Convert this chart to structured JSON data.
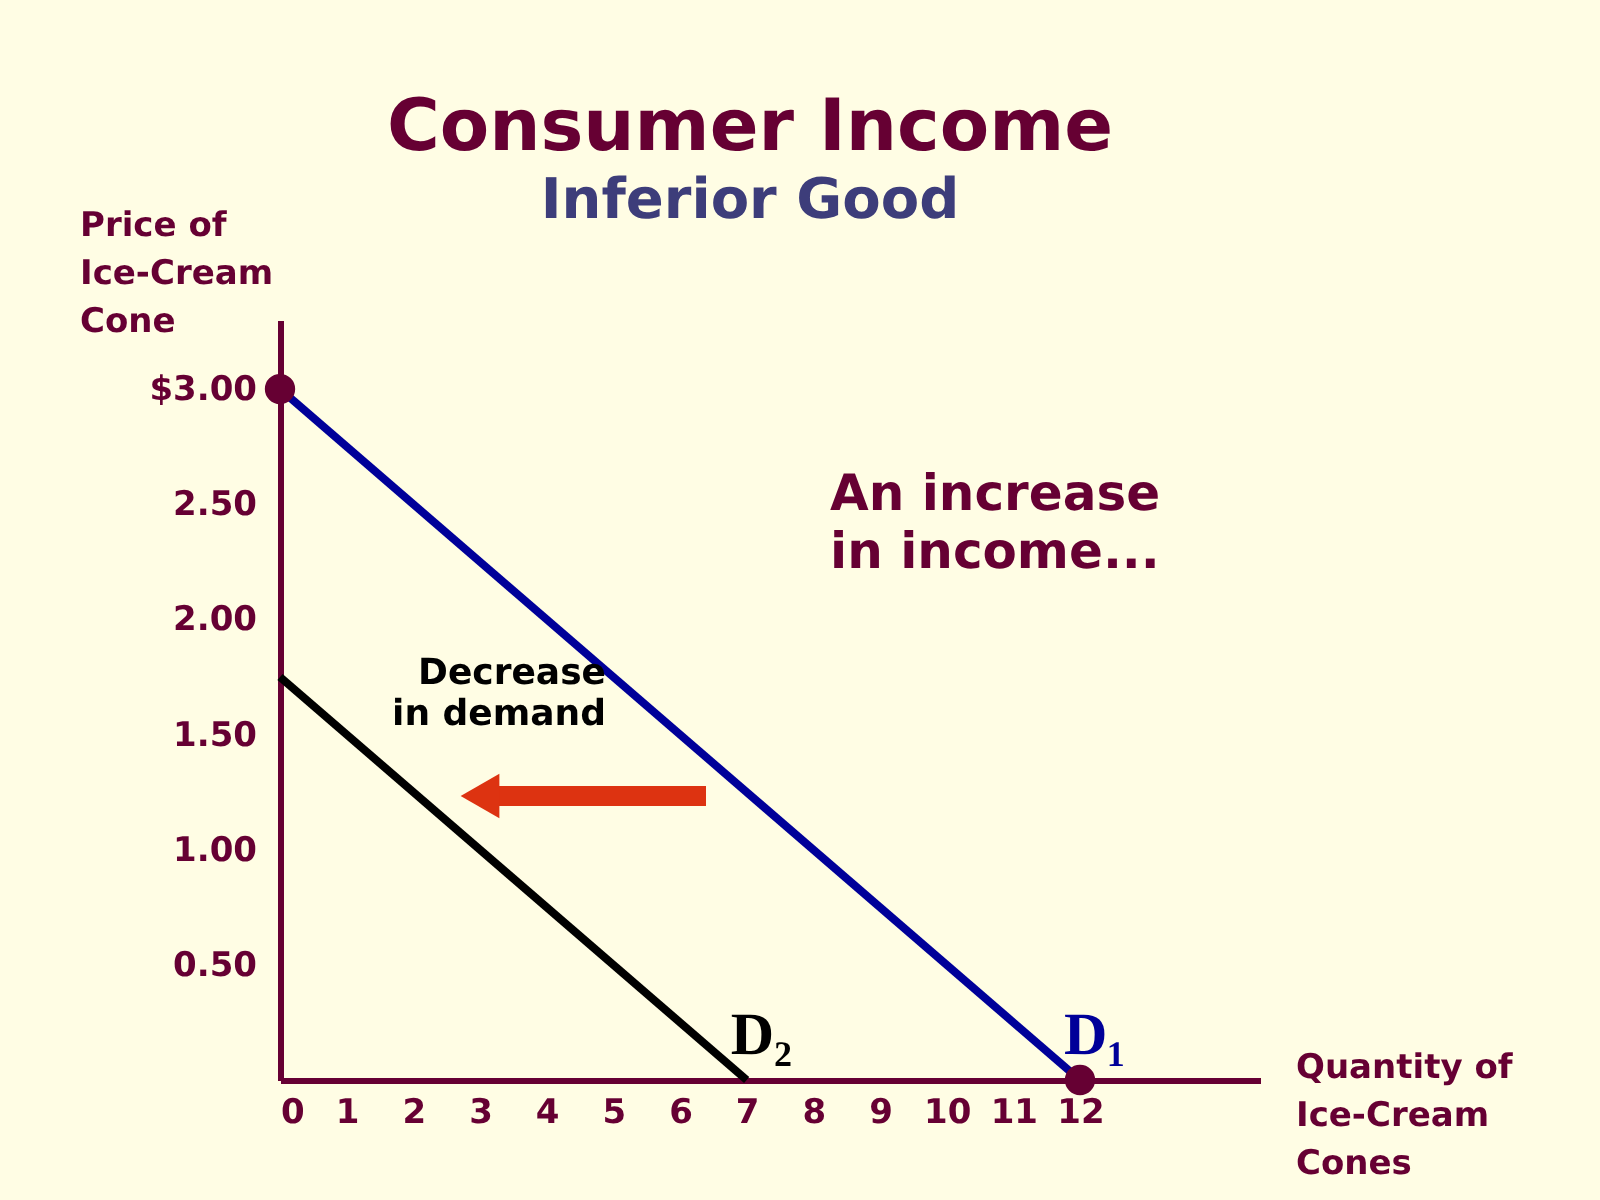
{
  "chart_data": {
    "type": "line",
    "title": "Consumer Income",
    "subtitle": "Inferior Good",
    "xlabel": "Quantity of Ice-Cream Cones",
    "ylabel": "Price of Ice-Cream Cone",
    "series": [
      {
        "name": "D₁",
        "color": "#000099",
        "x": [
          0,
          12
        ],
        "values": [
          3.0,
          0
        ]
      },
      {
        "name": "D₂",
        "color": "#000000",
        "x": [
          0,
          7
        ],
        "values": [
          1.75,
          0
        ]
      },
      {
        "type": "scatter",
        "marker": "circle",
        "color": "#660033",
        "x": [
          0,
          12
        ],
        "values": [
          3.0,
          0
        ]
      }
    ],
    "annotations": [
      "An increase in income...",
      "Decrease in demand"
    ],
    "xlim": [
      0,
      14.7
    ],
    "ylim": [
      0,
      3.3
    ],
    "xticks": [
      0,
      1,
      2,
      3,
      4,
      5,
      6,
      7,
      8,
      9,
      10,
      11,
      12
    ],
    "yticks": [
      {
        "value": 0.5,
        "label": "0.50"
      },
      {
        "value": 1,
        "label": "1.00"
      },
      {
        "value": 1.5,
        "label": "1.50"
      },
      {
        "value": 2,
        "label": "2.00"
      },
      {
        "value": 2.5,
        "label": "2.50"
      },
      {
        "value": 3,
        "label": "$3.00"
      }
    ],
    "grid": false,
    "marker": "none",
    "line_style": "solid"
  }
}
